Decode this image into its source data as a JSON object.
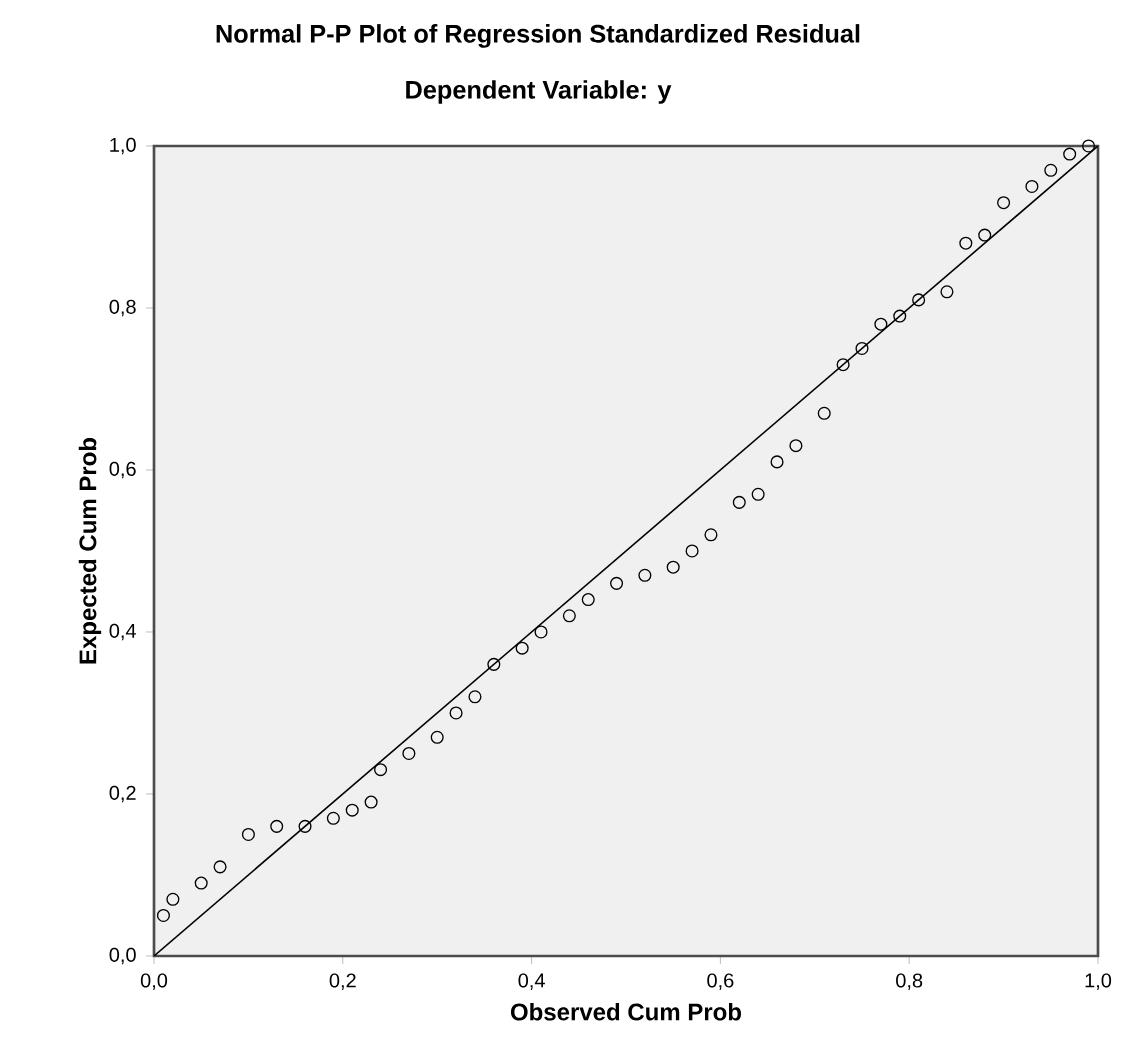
{
  "chart_data": {
    "type": "scatter",
    "title": "Normal P-P Plot of Regression Standardized Residual",
    "subtitle": "Dependent Variable: y",
    "xlabel": "Observed Cum Prob",
    "ylabel": "Expected Cum Prob",
    "xlim": [
      0,
      1
    ],
    "ylim": [
      0,
      1
    ],
    "xticks": [
      {
        "value": 0,
        "label": "0,0"
      },
      {
        "value": 0.2,
        "label": "0,2"
      },
      {
        "value": 0.4,
        "label": "0,4"
      },
      {
        "value": 0.6,
        "label": "0,6"
      },
      {
        "value": 0.8,
        "label": "0,8"
      },
      {
        "value": 1,
        "label": "1,0"
      }
    ],
    "yticks": [
      {
        "value": 0,
        "label": "0,0"
      },
      {
        "value": 0.2,
        "label": "0,2"
      },
      {
        "value": 0.4,
        "label": "0,4"
      },
      {
        "value": 0.6,
        "label": "0,6"
      },
      {
        "value": 0.8,
        "label": "0,8"
      },
      {
        "value": 1,
        "label": "1,0"
      }
    ],
    "series": [
      {
        "marker": "circle",
        "color": "#000000",
        "x": [
          0.01,
          0.02,
          0.05,
          0.07,
          0.1,
          0.13,
          0.16,
          0.19,
          0.21,
          0.23,
          0.24,
          0.27,
          0.3,
          0.32,
          0.34,
          0.36,
          0.39,
          0.41,
          0.44,
          0.46,
          0.49,
          0.52,
          0.55,
          0.57,
          0.59,
          0.62,
          0.64,
          0.66,
          0.68,
          0.71,
          0.73,
          0.75,
          0.77,
          0.79,
          0.81,
          0.84,
          0.86,
          0.88,
          0.9,
          0.93,
          0.95,
          0.97,
          0.99
        ],
        "values": [
          0.05,
          0.07,
          0.09,
          0.11,
          0.15,
          0.16,
          0.16,
          0.17,
          0.18,
          0.19,
          0.23,
          0.25,
          0.27,
          0.3,
          0.32,
          0.36,
          0.38,
          0.4,
          0.42,
          0.44,
          0.46,
          0.47,
          0.48,
          0.5,
          0.52,
          0.56,
          0.57,
          0.61,
          0.63,
          0.67,
          0.73,
          0.75,
          0.78,
          0.79,
          0.81,
          0.82,
          0.88,
          0.89,
          0.93,
          0.95,
          0.97,
          0.99,
          1.0
        ]
      },
      {
        "type": "line",
        "marker": "none",
        "color": "#000000",
        "x": [
          0,
          1
        ],
        "values": [
          0,
          1
        ]
      }
    ]
  }
}
